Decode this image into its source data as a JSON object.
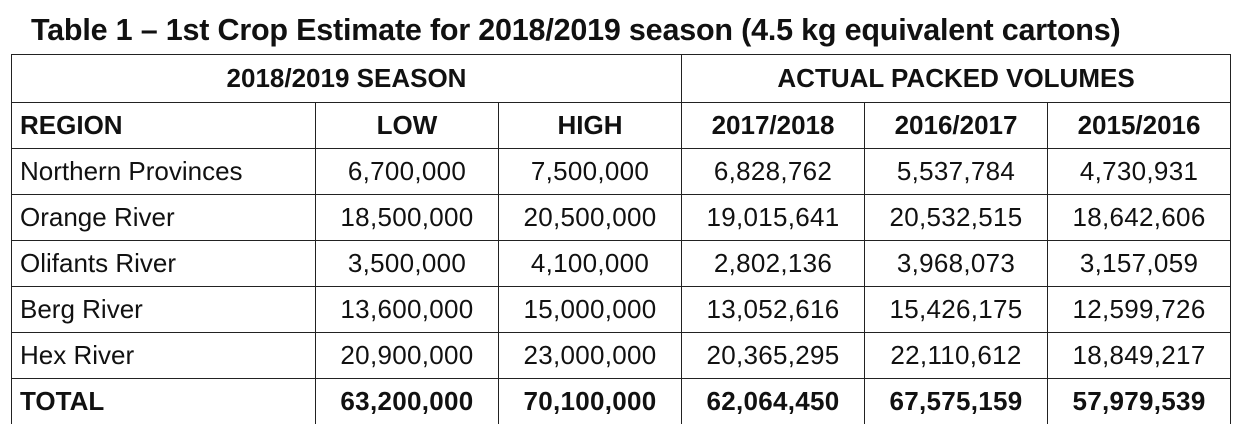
{
  "caption": "Table 1 – 1st Crop Estimate for 2018/2019 season (4.5 kg equivalent cartons)",
  "table": {
    "group_headers": [
      "2018/2019 SEASON",
      "ACTUAL PACKED VOLUMES"
    ],
    "columns": [
      "REGION",
      "LOW",
      "HIGH",
      "2017/2018",
      "2016/2017",
      "2015/2016"
    ],
    "rows": [
      {
        "region": "Northern Provinces",
        "values": [
          "6,700,000",
          "7,500,000",
          "6,828,762",
          "5,537,784",
          "4,730,931"
        ]
      },
      {
        "region": "Orange River",
        "values": [
          "18,500,000",
          "20,500,000",
          "19,015,641",
          "20,532,515",
          "18,642,606"
        ]
      },
      {
        "region": "Olifants River",
        "values": [
          "3,500,000",
          "4,100,000",
          "2,802,136",
          "3,968,073",
          "3,157,059"
        ]
      },
      {
        "region": "Berg River",
        "values": [
          "13,600,000",
          "15,000,000",
          "13,052,616",
          "15,426,175",
          "12,599,726"
        ]
      },
      {
        "region": "Hex River",
        "values": [
          "20,900,000",
          "23,000,000",
          "20,365,295",
          "22,110,612",
          "18,849,217"
        ]
      }
    ],
    "total": {
      "region": "TOTAL",
      "values": [
        "63,200,000",
        "70,100,000",
        "62,064,450",
        "67,575,159",
        "57,979,539"
      ]
    }
  }
}
